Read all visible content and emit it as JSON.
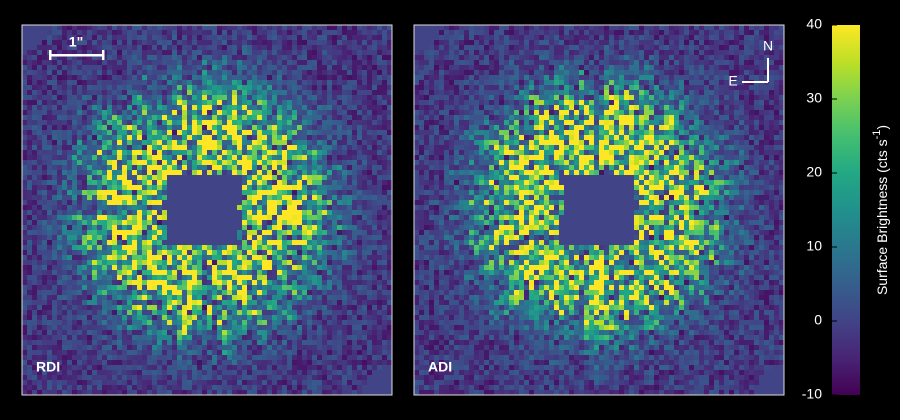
{
  "chart_data": {
    "type": "image",
    "panels": [
      {
        "label": "RDI",
        "scale_bar": "1\""
      },
      {
        "label": "ADI",
        "compass": {
          "north": "N",
          "east": "E"
        }
      }
    ],
    "colorbar": {
      "label": "Surface Brightness (cts s",
      "label_sup": "-1",
      "label_end": ")",
      "ylim": [
        -10,
        40
      ],
      "yticks": [
        -10,
        0,
        10,
        20,
        30,
        40
      ],
      "colormap": "viridis"
    }
  }
}
